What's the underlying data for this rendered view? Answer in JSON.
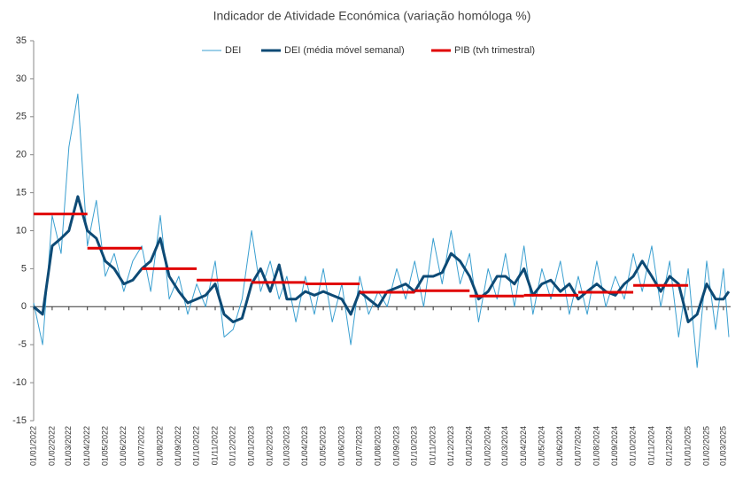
{
  "chart_data": {
    "type": "line",
    "title": "Indicador de Atividade Económica (variação homóloga %)",
    "x": [
      "01/01/2022",
      "16/01/2022",
      "01/02/2022",
      "16/02/2022",
      "01/03/2022",
      "16/03/2022",
      "01/04/2022",
      "16/04/2022",
      "01/05/2022",
      "16/05/2022",
      "01/06/2022",
      "16/06/2022",
      "01/07/2022",
      "16/07/2022",
      "01/08/2022",
      "16/08/2022",
      "01/09/2022",
      "16/09/2022",
      "01/10/2022",
      "16/10/2022",
      "01/11/2022",
      "16/11/2022",
      "01/12/2022",
      "16/12/2022",
      "01/01/2023",
      "16/01/2023",
      "01/02/2023",
      "16/02/2023",
      "01/03/2023",
      "16/03/2023",
      "01/04/2023",
      "16/04/2023",
      "01/05/2023",
      "16/05/2023",
      "01/06/2023",
      "16/06/2023",
      "01/07/2023",
      "16/07/2023",
      "01/08/2023",
      "16/08/2023",
      "01/09/2023",
      "16/09/2023",
      "01/10/2023",
      "16/10/2023",
      "01/11/2023",
      "16/11/2023",
      "01/12/2023",
      "16/12/2023",
      "01/01/2024",
      "16/01/2024",
      "01/02/2024",
      "16/02/2024",
      "01/03/2024",
      "16/03/2024",
      "01/04/2024",
      "16/04/2024",
      "01/05/2024",
      "16/05/2024",
      "01/06/2024",
      "16/06/2024",
      "01/07/2024",
      "16/07/2024",
      "01/08/2024",
      "16/08/2024",
      "01/09/2024",
      "16/09/2024",
      "01/10/2024",
      "16/10/2024",
      "01/11/2024",
      "16/11/2024",
      "01/12/2024",
      "16/12/2024",
      "01/01/2025",
      "16/01/2025",
      "01/02/2025",
      "16/02/2025",
      "01/03/2025",
      "10/03/2025"
    ],
    "series": [
      {
        "name": "DEI",
        "color": "#3a9fd0",
        "width": 1,
        "values": [
          0.5,
          -5,
          12,
          7,
          21,
          28,
          8,
          14,
          4,
          7,
          2,
          6,
          8,
          2,
          12,
          1,
          4,
          -1,
          3,
          0,
          6,
          -4,
          -3,
          1,
          10,
          2,
          6,
          1,
          4,
          -2,
          4,
          -1,
          5,
          -2,
          3,
          -5,
          4,
          -1,
          2,
          0,
          5,
          1,
          6,
          0,
          9,
          3,
          10,
          3,
          7,
          -2,
          5,
          1,
          7,
          0,
          8,
          -1,
          5,
          1,
          6,
          -1,
          4,
          -1,
          6,
          0,
          4,
          1,
          7,
          2,
          8,
          0,
          6,
          -4,
          5,
          -8,
          6,
          -3,
          5,
          -4
        ]
      },
      {
        "name": "DEI (média móvel semanal)",
        "color": "#0d4a75",
        "width": 3,
        "values": [
          0,
          -1,
          8,
          9,
          10,
          14.5,
          10,
          9,
          6,
          5,
          3,
          3.5,
          5,
          6,
          9,
          4,
          2,
          0.5,
          1,
          1.5,
          3,
          -1,
          -2,
          -1.5,
          3,
          5,
          2,
          5.5,
          1,
          1,
          2,
          1.5,
          2,
          1.5,
          1,
          -1,
          2,
          1,
          0,
          2,
          2.5,
          3,
          2,
          4,
          4,
          4.5,
          7,
          6,
          4,
          1,
          2,
          4,
          4,
          3,
          5,
          1.5,
          3,
          3.5,
          2,
          3,
          1,
          2,
          3,
          2,
          1.5,
          3,
          4,
          6,
          4,
          2,
          4,
          3,
          -2,
          -1,
          3,
          1,
          1,
          2
        ]
      },
      {
        "name": "PIB (tvh trimestral)",
        "color": "#e00000",
        "width": 3,
        "style": "step",
        "x": [
          "01/01/2022",
          "01/04/2022",
          "01/07/2022",
          "01/10/2022",
          "01/01/2023",
          "01/04/2023",
          "01/07/2023",
          "01/10/2023",
          "01/01/2024",
          "01/04/2024",
          "01/07/2024",
          "01/10/2024"
        ],
        "values": [
          12.2,
          7.7,
          5.0,
          3.5,
          3.2,
          3.0,
          1.9,
          2.1,
          1.4,
          1.5,
          1.9,
          2.8
        ]
      }
    ],
    "xlim": [
      "01/01/2022",
      "13/03/2025"
    ],
    "xticks": [
      "01/01/2022",
      "01/02/2022",
      "01/03/2022",
      "01/04/2022",
      "01/05/2022",
      "01/06/2022",
      "01/07/2022",
      "01/08/2022",
      "01/09/2022",
      "01/10/2022",
      "01/11/2022",
      "01/12/2022",
      "01/01/2023",
      "01/02/2023",
      "01/03/2023",
      "01/04/2023",
      "01/05/2023",
      "01/06/2023",
      "01/07/2023",
      "01/08/2023",
      "01/09/2023",
      "01/10/2023",
      "01/11/2023",
      "01/12/2023",
      "01/01/2024",
      "01/02/2024",
      "01/03/2024",
      "01/04/2024",
      "01/05/2024",
      "01/06/2024",
      "01/07/2024",
      "01/08/2024",
      "01/09/2024",
      "01/10/2024",
      "01/11/2024",
      "01/12/2024",
      "01/01/2025",
      "01/02/2025",
      "01/03/2025"
    ],
    "ylim": [
      -15,
      35
    ],
    "yticks": [
      -15,
      -10,
      -5,
      0,
      5,
      10,
      15,
      20,
      25,
      30,
      35
    ],
    "legend": "top"
  }
}
